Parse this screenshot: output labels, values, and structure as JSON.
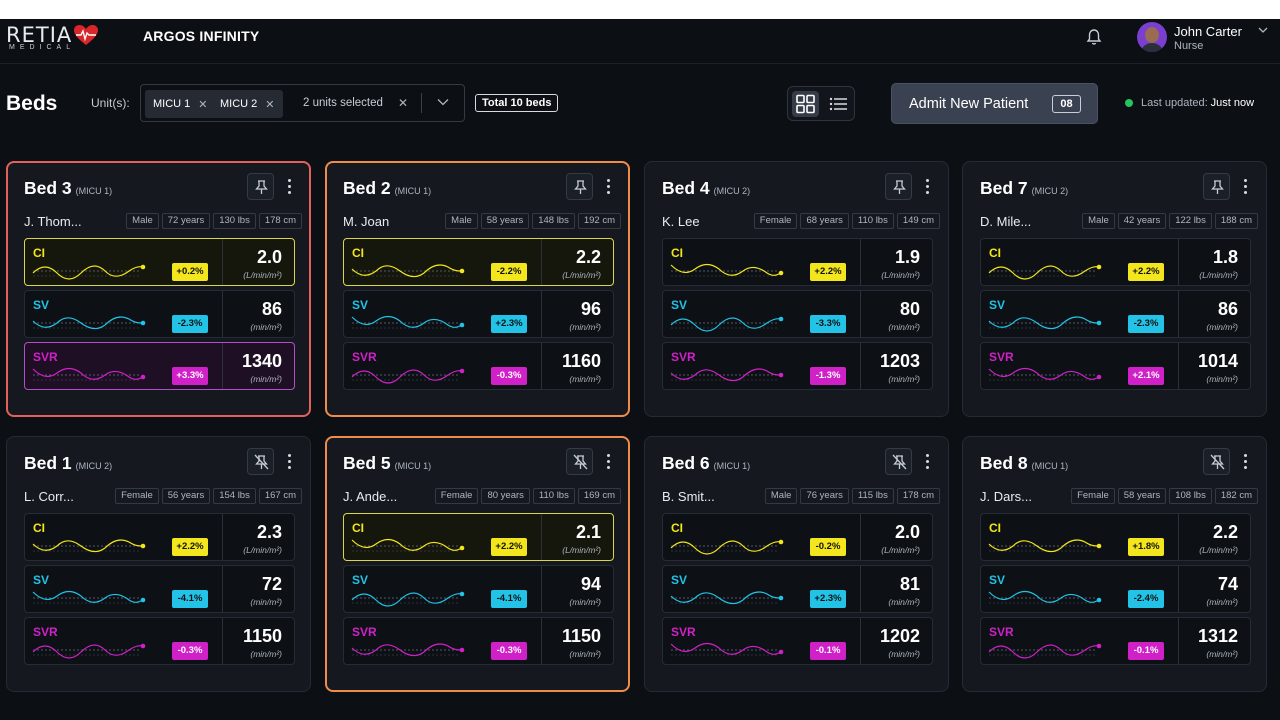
{
  "brand": {
    "word": "RETIA",
    "sub": "MEDICAL",
    "product": "ARGOS INFINITY"
  },
  "user": {
    "name": "John Carter",
    "role": "Nurse"
  },
  "toolbar": {
    "title": "Beds",
    "units_label": "Unit(s):",
    "chips": [
      "MICU 1",
      "MICU 2"
    ],
    "units_count": "2 units selected",
    "total": "Total 10 beds",
    "admit_label": "Admit New Patient",
    "admit_count": "08",
    "updated_label": "Last updated:",
    "updated_value": "Just now"
  },
  "colors": {
    "ci": "#f3e61c",
    "sv": "#22c3e6",
    "svr": "#d021c9",
    "alert_red": "#e2615a",
    "alert_orange": "#f08c4a",
    "status_ok": "#22c55e"
  },
  "icons": {
    "bell": "bell-icon",
    "grid": "grid-view-icon",
    "list": "list-view-icon",
    "pin": "pin-icon",
    "unpin": "unpin-icon",
    "menu": "kebab-menu-icon"
  },
  "beds": [
    {
      "bed": "Bed 3",
      "unit": "(MICU 1)",
      "patient": "J. Thom...",
      "sex": "Male",
      "age": "72 years",
      "weight": "130 lbs",
      "height": "178 cm",
      "pinned": true,
      "alert": "red",
      "metrics": [
        {
          "key": "ci",
          "label": "CI",
          "value": "2.0",
          "unit": "(L/min/m²)",
          "change": "+0.2%",
          "highlight": true
        },
        {
          "key": "sv",
          "label": "SV",
          "value": "86",
          "unit": "(min/m²)",
          "change": "-2.3%",
          "highlight": false
        },
        {
          "key": "svr",
          "label": "SVR",
          "value": "1340",
          "unit": "(min/m²)",
          "change": "+3.3%",
          "highlight": true
        }
      ]
    },
    {
      "bed": "Bed 2",
      "unit": "(MICU 1)",
      "patient": "M. Joan",
      "sex": "Male",
      "age": "58 years",
      "weight": "148 lbs",
      "height": "192 cm",
      "pinned": true,
      "alert": "orange",
      "metrics": [
        {
          "key": "ci",
          "label": "CI",
          "value": "2.2",
          "unit": "(L/min/m²)",
          "change": "-2.2%",
          "highlight": true
        },
        {
          "key": "sv",
          "label": "SV",
          "value": "96",
          "unit": "(min/m²)",
          "change": "+2.3%",
          "highlight": false
        },
        {
          "key": "svr",
          "label": "SVR",
          "value": "1160",
          "unit": "(min/m²)",
          "change": "-0.3%",
          "highlight": false
        }
      ]
    },
    {
      "bed": "Bed 4",
      "unit": "(MICU 2)",
      "patient": "K. Lee",
      "sex": "Female",
      "age": "68 years",
      "weight": "110 lbs",
      "height": "149 cm",
      "pinned": true,
      "alert": "none",
      "metrics": [
        {
          "key": "ci",
          "label": "CI",
          "value": "1.9",
          "unit": "(L/min/m²)",
          "change": "+2.2%",
          "highlight": false
        },
        {
          "key": "sv",
          "label": "SV",
          "value": "80",
          "unit": "(min/m²)",
          "change": "-3.3%",
          "highlight": false
        },
        {
          "key": "svr",
          "label": "SVR",
          "value": "1203",
          "unit": "(min/m²)",
          "change": "-1.3%",
          "highlight": false
        }
      ]
    },
    {
      "bed": "Bed 7",
      "unit": "(MICU 2)",
      "patient": "D. Mile...",
      "sex": "Male",
      "age": "42 years",
      "weight": "122 lbs",
      "height": "188 cm",
      "pinned": true,
      "alert": "none",
      "metrics": [
        {
          "key": "ci",
          "label": "CI",
          "value": "1.8",
          "unit": "(L/min/m²)",
          "change": "+2.2%",
          "highlight": false
        },
        {
          "key": "sv",
          "label": "SV",
          "value": "86",
          "unit": "(min/m²)",
          "change": "-2.3%",
          "highlight": false
        },
        {
          "key": "svr",
          "label": "SVR",
          "value": "1014",
          "unit": "(min/m²)",
          "change": "+2.1%",
          "highlight": false
        }
      ]
    },
    {
      "bed": "Bed 1",
      "unit": "(MICU 2)",
      "patient": "L. Corr...",
      "sex": "Female",
      "age": "56 years",
      "weight": "154 lbs",
      "height": "167 cm",
      "pinned": false,
      "alert": "none",
      "metrics": [
        {
          "key": "ci",
          "label": "CI",
          "value": "2.3",
          "unit": "(L/min/m²)",
          "change": "+2.2%",
          "highlight": false
        },
        {
          "key": "sv",
          "label": "SV",
          "value": "72",
          "unit": "(min/m²)",
          "change": "-4.1%",
          "highlight": false
        },
        {
          "key": "svr",
          "label": "SVR",
          "value": "1150",
          "unit": "(min/m²)",
          "change": "-0.3%",
          "highlight": false
        }
      ]
    },
    {
      "bed": "Bed 5",
      "unit": "(MICU 1)",
      "patient": "J. Ande...",
      "sex": "Female",
      "age": "80 years",
      "weight": "110 lbs",
      "height": "169 cm",
      "pinned": false,
      "alert": "orange",
      "metrics": [
        {
          "key": "ci",
          "label": "CI",
          "value": "2.1",
          "unit": "(L/min/m²)",
          "change": "+2.2%",
          "highlight": true
        },
        {
          "key": "sv",
          "label": "SV",
          "value": "94",
          "unit": "(min/m²)",
          "change": "-4.1%",
          "highlight": false
        },
        {
          "key": "svr",
          "label": "SVR",
          "value": "1150",
          "unit": "(min/m²)",
          "change": "-0.3%",
          "highlight": false
        }
      ]
    },
    {
      "bed": "Bed 6",
      "unit": "(MICU 1)",
      "patient": "B. Smit...",
      "sex": "Male",
      "age": "76 years",
      "weight": "115 lbs",
      "height": "178 cm",
      "pinned": false,
      "alert": "none",
      "metrics": [
        {
          "key": "ci",
          "label": "CI",
          "value": "2.0",
          "unit": "(L/min/m²)",
          "change": "-0.2%",
          "highlight": false
        },
        {
          "key": "sv",
          "label": "SV",
          "value": "81",
          "unit": "(min/m²)",
          "change": "+2.3%",
          "highlight": false
        },
        {
          "key": "svr",
          "label": "SVR",
          "value": "1202",
          "unit": "(min/m²)",
          "change": "-0.1%",
          "highlight": false
        }
      ]
    },
    {
      "bed": "Bed 8",
      "unit": "(MICU 1)",
      "patient": "J. Dars...",
      "sex": "Female",
      "age": "58 years",
      "weight": "108 lbs",
      "height": "182 cm",
      "pinned": false,
      "alert": "none",
      "metrics": [
        {
          "key": "ci",
          "label": "CI",
          "value": "2.2",
          "unit": "(L/min/m²)",
          "change": "+1.8%",
          "highlight": false
        },
        {
          "key": "sv",
          "label": "SV",
          "value": "74",
          "unit": "(min/m²)",
          "change": "-2.4%",
          "highlight": false
        },
        {
          "key": "svr",
          "label": "SVR",
          "value": "1312",
          "unit": "(min/m²)",
          "change": "-0.1%",
          "highlight": false
        }
      ]
    }
  ]
}
